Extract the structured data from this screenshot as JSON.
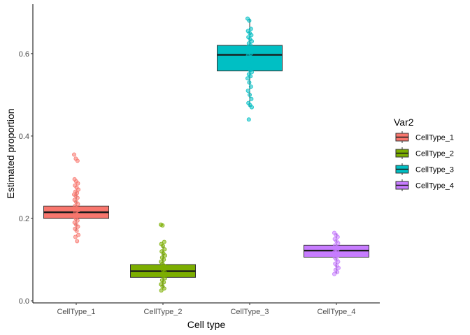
{
  "chart_data": {
    "type": "boxplot",
    "xlabel": "Cell type",
    "ylabel": "Estimated proportion",
    "ylim": [
      -0.005,
      0.72
    ],
    "yticks": [
      0.0,
      0.2,
      0.4,
      0.6
    ],
    "ytick_labels": [
      "0.0",
      "0.2",
      "0.4",
      "0.6"
    ],
    "categories": [
      "CellType_1",
      "CellType_2",
      "CellType_3",
      "CellType_4"
    ],
    "grid": false,
    "legend": {
      "title": "Var2",
      "position": "right",
      "entries": [
        "CellType_1",
        "CellType_2",
        "CellType_3",
        "CellType_4"
      ]
    },
    "colors": [
      "#F8766D",
      "#7CAE00",
      "#00BFC4",
      "#C77CFF"
    ],
    "boxes": [
      {
        "name": "CellType_1",
        "whisker_low": 0.17,
        "q1": 0.2,
        "median": 0.215,
        "q3": 0.23,
        "whisker_high": 0.265,
        "points": [
          0.355,
          0.345,
          0.34,
          0.295,
          0.29,
          0.285,
          0.28,
          0.275,
          0.27,
          0.265,
          0.262,
          0.258,
          0.255,
          0.25,
          0.245,
          0.24,
          0.235,
          0.23,
          0.225,
          0.22,
          0.215,
          0.21,
          0.205,
          0.2,
          0.195,
          0.19,
          0.185,
          0.18,
          0.175,
          0.17,
          0.16,
          0.155,
          0.145
        ]
      },
      {
        "name": "CellType_2",
        "whisker_low": 0.03,
        "q1": 0.057,
        "median": 0.072,
        "q3": 0.088,
        "whisker_high": 0.133,
        "points": [
          0.185,
          0.183,
          0.143,
          0.138,
          0.133,
          0.125,
          0.12,
          0.115,
          0.11,
          0.105,
          0.1,
          0.095,
          0.09,
          0.085,
          0.08,
          0.075,
          0.07,
          0.065,
          0.06,
          0.055,
          0.05,
          0.045,
          0.04,
          0.035,
          0.03,
          0.025
        ]
      },
      {
        "name": "CellType_3",
        "whisker_low": 0.47,
        "q1": 0.558,
        "median": 0.597,
        "q3": 0.62,
        "whisker_high": 0.685,
        "points": [
          0.685,
          0.68,
          0.66,
          0.655,
          0.65,
          0.645,
          0.64,
          0.635,
          0.63,
          0.625,
          0.62,
          0.615,
          0.61,
          0.6,
          0.595,
          0.59,
          0.58,
          0.57,
          0.56,
          0.555,
          0.55,
          0.545,
          0.54,
          0.53,
          0.52,
          0.51,
          0.5,
          0.49,
          0.48,
          0.475,
          0.47,
          0.44
        ]
      },
      {
        "name": "CellType_4",
        "whisker_low": 0.065,
        "q1": 0.106,
        "median": 0.122,
        "q3": 0.135,
        "whisker_high": 0.163,
        "points": [
          0.165,
          0.16,
          0.155,
          0.15,
          0.145,
          0.14,
          0.135,
          0.13,
          0.128,
          0.125,
          0.122,
          0.118,
          0.115,
          0.11,
          0.105,
          0.1,
          0.095,
          0.09,
          0.085,
          0.08,
          0.075,
          0.07,
          0.065
        ]
      }
    ]
  }
}
